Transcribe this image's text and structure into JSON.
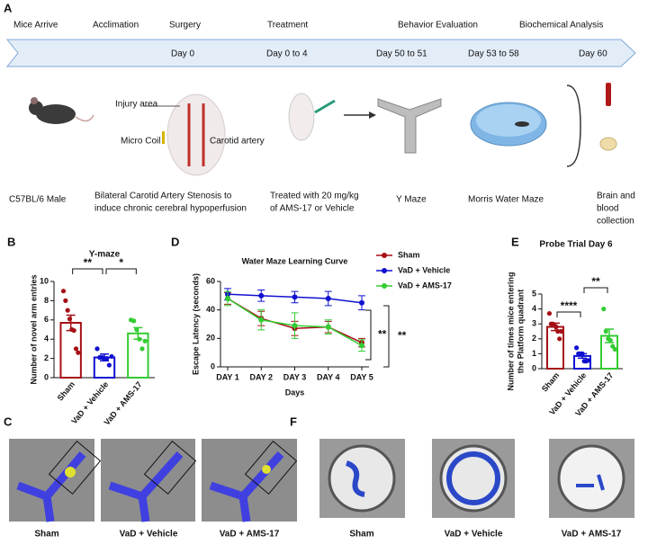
{
  "panel_labels": [
    "A",
    "B",
    "C",
    "D",
    "E",
    "F"
  ],
  "timeline": {
    "events": [
      "Mice Arrive",
      "Acclimation",
      "Surgery",
      "Treatment",
      "Behavior Evaluation",
      "Biochemical Analysis"
    ],
    "days": [
      "Day 0",
      "Day 0 to 4",
      "Day 50 to 51",
      "Day 53 to 58",
      "Day 60"
    ]
  },
  "illustration_labels": [
    "Injury area",
    "Micro Coil",
    "Carotid artery"
  ],
  "captions": [
    [
      "C57BL/6 Male"
    ],
    [
      "Bilateral Carotid Artery Stenosis to",
      "induce chronic cerebral hypoperfusion"
    ],
    [
      "Treated with 20 mg/kg",
      "of AMS-17 or Vehicle"
    ],
    [
      "Y Maze"
    ],
    [
      "Morris Water Maze"
    ],
    [
      "Brain  and",
      "blood",
      "collection"
    ]
  ],
  "chart_data": [
    {
      "type": "bar",
      "title": "Y-maze",
      "ylabel": [
        "Number of novel arm entries"
      ],
      "categories": [
        "Sham",
        "VaD + Vehicle",
        "VaD + AMS-17"
      ],
      "colors": [
        "#a50f15",
        "#1010d0",
        "#33cc33"
      ],
      "values": [
        5.7,
        2.1,
        4.6
      ],
      "errors": [
        0.8,
        0.35,
        0.6
      ],
      "points": [
        [
          9.0,
          8.0,
          7.0,
          6.1,
          5.0,
          4.9,
          3.0,
          2.6
        ],
        [
          3.0,
          2.1,
          2.1,
          2.0,
          2.0,
          1.3,
          2.2
        ],
        [
          6.0,
          5.9,
          5.0,
          4.0,
          3.0,
          3.8
        ]
      ],
      "ylim": [
        0,
        10
      ],
      "yticks": [
        0,
        2,
        4,
        6,
        8,
        10
      ],
      "significance": [
        "**",
        "*"
      ]
    },
    {
      "type": "line",
      "title": "Water Maze Learning Curve",
      "xlabel": "Days",
      "ylabel": "Escape Latency (seconds)",
      "categories": [
        "DAY 1",
        "DAY 2",
        "DAY 3",
        "DAY 4",
        "DAY 5"
      ],
      "series": [
        {
          "name": "Sham",
          "color": "#a50f15",
          "values": [
            48,
            34,
            27,
            28,
            17
          ],
          "errors": [
            4,
            5,
            5,
            4,
            3
          ]
        },
        {
          "name": "VaD + Vehicle",
          "color": "#1010d0",
          "values": [
            51,
            50,
            49,
            48,
            45
          ],
          "errors": [
            4,
            4,
            4,
            5,
            5
          ]
        },
        {
          "name": "VaD + AMS-17",
          "color": "#33cc33",
          "values": [
            48,
            33,
            29,
            28,
            15
          ],
          "errors": [
            5,
            7,
            9,
            5,
            4
          ]
        }
      ],
      "ylim": [
        0,
        60
      ],
      "yticks": [
        0,
        20,
        40,
        60
      ],
      "significance": [
        "**",
        "**"
      ]
    },
    {
      "type": "bar",
      "title": "Probe Trial Day 6",
      "ylabel": [
        "Number of times mice entering",
        "the Platform quadrant"
      ],
      "categories": [
        "Sham",
        "VaD + Vehicle",
        "VaD + AMS-17"
      ],
      "colors": [
        "#a50f15",
        "#1010d0",
        "#33cc33"
      ],
      "values": [
        2.8,
        0.85,
        2.2
      ],
      "errors": [
        0.25,
        0.15,
        0.45
      ],
      "points": [
        [
          3.7,
          3.0,
          3.0,
          2.9,
          2.8,
          2.5,
          2.0,
          2.5
        ],
        [
          1.4,
          1.0,
          1.0,
          1.0,
          0.5,
          0.5,
          0.55
        ],
        [
          4.0,
          2.5,
          2.0,
          1.9,
          1.5,
          1.3
        ]
      ],
      "ylim": [
        0,
        5
      ],
      "yticks": [
        0,
        1,
        2,
        3,
        4,
        5
      ],
      "significance": [
        "****",
        "**"
      ]
    }
  ],
  "images_c": [
    "Sham",
    "VaD + Vehicle",
    "VaD + AMS-17"
  ],
  "images_f": [
    "Sham",
    "VaD + Vehicle",
    "VaD + AMS-17"
  ]
}
